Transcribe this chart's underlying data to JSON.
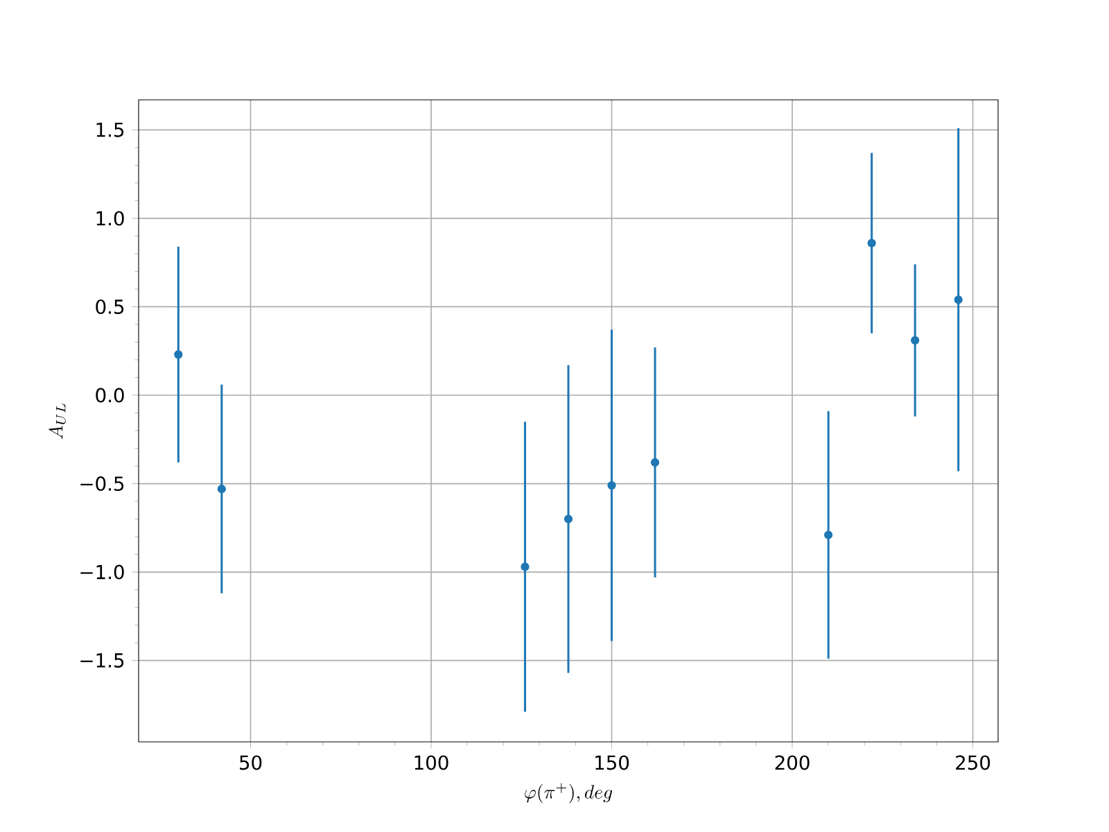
{
  "chart_data": {
    "type": "scatter",
    "xlabel": "\\varphi(\\pi^+), deg",
    "ylabel": "A_{UL}",
    "x": [
      30,
      42,
      126,
      138,
      150,
      162,
      210,
      222,
      234,
      246
    ],
    "series": [
      {
        "color": "#1f77b4",
        "values": [
          0.23,
          -0.53,
          -0.97,
          -0.7,
          -0.51,
          -0.38,
          -0.79,
          0.86,
          0.31,
          0.54
        ],
        "errors": [
          0.61,
          0.59,
          0.82,
          0.87,
          0.88,
          0.65,
          0.7,
          0.51,
          0.43,
          0.97
        ]
      }
    ],
    "xlim": [
      19,
      257
    ],
    "ylim": [
      -1.96,
      1.67
    ],
    "xticks": [
      50,
      100,
      150,
      200,
      250
    ],
    "yticks": [
      {
        "value": -1.5,
        "label": "−1.5"
      },
      {
        "value": -1.0,
        "label": "−1.0"
      },
      {
        "value": -0.5,
        "label": "−0.5"
      },
      {
        "value": 0.0,
        "label": "0.0"
      },
      {
        "value": 0.5,
        "label": "0.5"
      },
      {
        "value": 1.0,
        "label": "1.0"
      },
      {
        "value": 1.5,
        "label": "1.5"
      }
    ],
    "grid": true,
    "marker": "circle"
  }
}
